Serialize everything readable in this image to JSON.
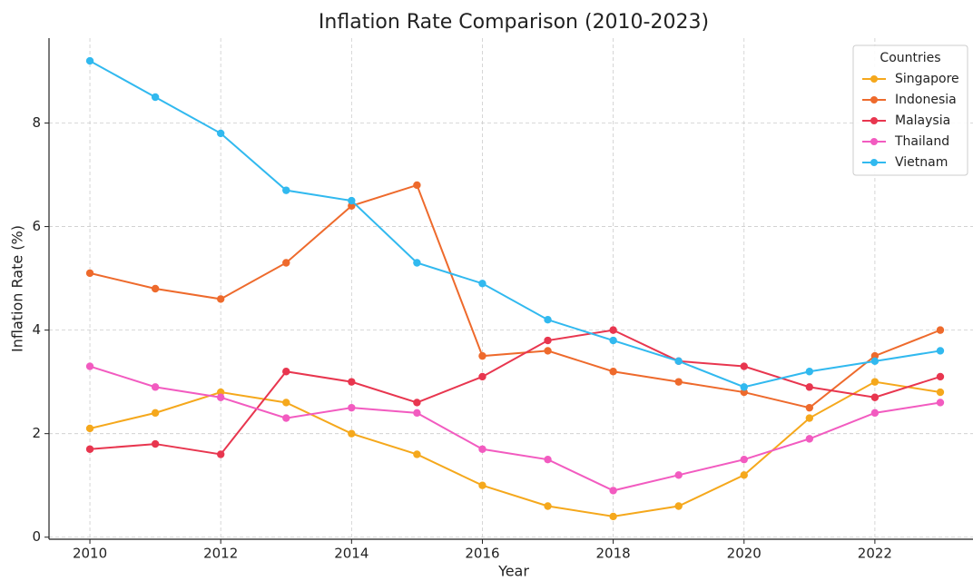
{
  "chart_data": {
    "type": "line",
    "title": "Inflation Rate Comparison (2010-2023)",
    "x_label": "Year",
    "y_label": "Inflation Rate (%)",
    "legend_title": "Countries",
    "x": [
      2010,
      2011,
      2012,
      2013,
      2014,
      2015,
      2016,
      2017,
      2018,
      2019,
      2020,
      2021,
      2022,
      2023
    ],
    "series": [
      {
        "name": "Singapore",
        "color": "#f5a81c",
        "values": [
          2.1,
          2.4,
          2.8,
          2.6,
          2.0,
          1.6,
          1.0,
          0.6,
          0.4,
          0.6,
          1.2,
          2.3,
          3.0,
          2.8
        ]
      },
      {
        "name": "Indonesia",
        "color": "#ee6a2c",
        "values": [
          5.1,
          4.8,
          4.6,
          5.3,
          6.4,
          6.8,
          3.5,
          3.6,
          3.2,
          3.0,
          2.8,
          2.5,
          3.5,
          4.0
        ]
      },
      {
        "name": "Malaysia",
        "color": "#e8364f",
        "values": [
          1.7,
          1.8,
          1.6,
          3.2,
          3.0,
          2.6,
          3.1,
          3.8,
          4.0,
          3.4,
          3.3,
          2.9,
          2.7,
          3.1
        ]
      },
      {
        "name": "Thailand",
        "color": "#f25bc0",
        "values": [
          3.3,
          2.9,
          2.7,
          2.3,
          2.5,
          2.4,
          1.7,
          1.5,
          0.9,
          1.2,
          1.5,
          1.9,
          2.4,
          2.6
        ]
      },
      {
        "name": "Vietnam",
        "color": "#31b9ef",
        "values": [
          9.2,
          8.5,
          7.8,
          6.7,
          6.5,
          5.3,
          4.9,
          4.2,
          3.8,
          3.4,
          2.9,
          3.2,
          3.4,
          3.6
        ]
      }
    ],
    "xlim": [
      2009.375,
      2023.5
    ],
    "xticks": [
      2010,
      2012,
      2014,
      2016,
      2018,
      2020,
      2022
    ],
    "ylim": [
      -0.04,
      9.64
    ],
    "yticks": [
      0,
      2,
      4,
      6,
      8
    ],
    "grid": true,
    "legend_position": "upper right"
  }
}
